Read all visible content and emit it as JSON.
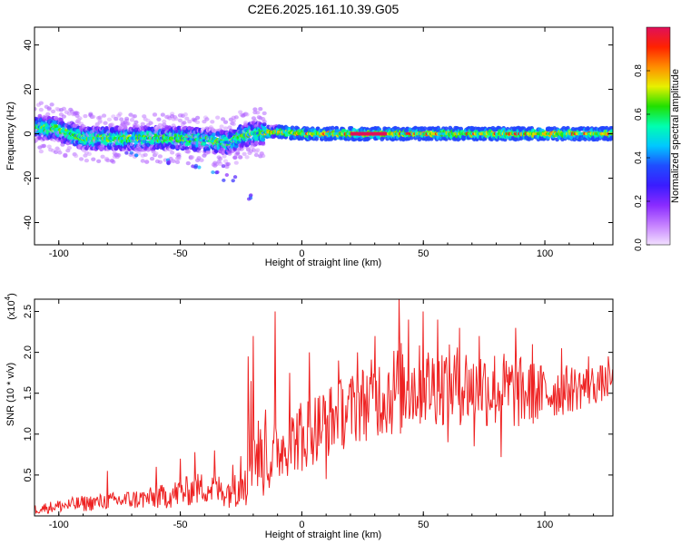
{
  "title": "C2E6.2025.161.10.39.G05",
  "colors": {
    "snr_line": "#ee2222",
    "axis": "#000000",
    "colormap": [
      "#f2e0ff",
      "#c580ff",
      "#8a2bff",
      "#3a1cff",
      "#1f4dff",
      "#00c8ff",
      "#00ffb0",
      "#21e000",
      "#e8f000",
      "#ff8c00",
      "#ff2200",
      "#e0105a"
    ]
  },
  "chart_data": [
    {
      "type": "heatmap",
      "xlabel": "Height of straight line (km)",
      "ylabel": "Frequency (Hz)",
      "xlim": [
        -110,
        128
      ],
      "ylim": [
        -50,
        48
      ],
      "xticks": [
        -100,
        -50,
        0,
        50,
        100
      ],
      "xtick_labels": [
        "-100",
        "-50",
        "0",
        "50",
        "100"
      ],
      "yticks": [
        40,
        20,
        0,
        -20,
        -40
      ],
      "ytick_labels": [
        "40",
        "20",
        "0",
        "-20",
        "-40"
      ],
      "colorbar": {
        "label": "Normalized spectral amplitude",
        "range": [
          0,
          1
        ],
        "ticks": [
          0.0,
          0.2,
          0.4,
          0.6,
          0.8
        ],
        "tick_labels": [
          "0.0",
          "0.2",
          "0.4",
          "0.6",
          "0.8"
        ]
      },
      "ridge_frequency": [
        {
          "x": -108,
          "y": 3
        },
        {
          "x": -100,
          "y": 2
        },
        {
          "x": -90,
          "y": -2
        },
        {
          "x": -80,
          "y": -2
        },
        {
          "x": -70,
          "y": -2
        },
        {
          "x": -60,
          "y": -2
        },
        {
          "x": -50,
          "y": -2
        },
        {
          "x": -40,
          "y": -3
        },
        {
          "x": -30,
          "y": -4
        },
        {
          "x": -25,
          "y": -1
        },
        {
          "x": -20,
          "y": 0
        },
        {
          "x": -10,
          "y": 1
        },
        {
          "x": 0,
          "y": 0
        },
        {
          "x": 20,
          "y": 0
        },
        {
          "x": 60,
          "y": 0
        },
        {
          "x": 100,
          "y": 0
        },
        {
          "x": 128,
          "y": 0
        }
      ],
      "bright_segment": {
        "x": [
          20,
          35
        ],
        "y": 0,
        "amplitude": 1.0
      },
      "secondary_branch": [
        {
          "x": -70,
          "y": -10
        },
        {
          "x": -55,
          "y": -12
        },
        {
          "x": -45,
          "y": -14
        },
        {
          "x": -35,
          "y": -16
        },
        {
          "x": -30,
          "y": -20
        },
        {
          "x": -20,
          "y": -29
        }
      ]
    },
    {
      "type": "line",
      "xlabel": "Height of straight line (km)",
      "ylabel": "SNR (10 * v/v)",
      "y_multiplier": "(x10",
      "y_multiplier_exp": "4",
      "y_multiplier_close": ")",
      "xlim": [
        -110,
        128
      ],
      "ylim": [
        0,
        2.65
      ],
      "xticks": [
        -100,
        -50,
        0,
        50,
        100
      ],
      "xtick_labels": [
        "-100",
        "-50",
        "0",
        "50",
        "100"
      ],
      "yticks": [
        0.5,
        1.0,
        1.5,
        2.0,
        2.5
      ],
      "ytick_labels": [
        "0.5",
        "1.0",
        "1.5",
        "2.0",
        "2.5"
      ],
      "series": [
        {
          "color": "#ee2222",
          "x": [
            -110,
            -100,
            -90,
            -80,
            -70,
            -60,
            -50,
            -40,
            -35,
            -30,
            -25,
            -22,
            -20,
            -18,
            -15,
            -10,
            -5,
            0,
            10,
            20,
            30,
            35,
            40,
            50,
            60,
            70,
            80,
            90,
            100,
            110,
            120,
            128
          ],
          "baseline": [
            0.08,
            0.12,
            0.15,
            0.18,
            0.2,
            0.22,
            0.28,
            0.35,
            0.32,
            0.3,
            0.55,
            0.7,
            0.8,
            0.75,
            0.65,
            0.8,
            0.9,
            1.0,
            1.15,
            1.3,
            1.45,
            1.5,
            1.55,
            1.6,
            1.6,
            1.6,
            1.55,
            1.5,
            1.5,
            1.55,
            1.6,
            1.65
          ],
          "noise_amplitude": [
            0.06,
            0.08,
            0.1,
            0.1,
            0.12,
            0.14,
            0.18,
            0.2,
            0.2,
            0.2,
            0.45,
            0.6,
            0.55,
            0.5,
            0.45,
            0.4,
            0.4,
            0.45,
            0.45,
            0.45,
            0.5,
            0.55,
            0.6,
            0.5,
            0.5,
            0.5,
            0.5,
            0.45,
            0.35,
            0.3,
            0.25,
            0.2
          ],
          "spikes": [
            {
              "x": -80,
              "y": 0.55
            },
            {
              "x": -60,
              "y": 0.6
            },
            {
              "x": -50,
              "y": 0.7
            },
            {
              "x": -44,
              "y": 0.78
            },
            {
              "x": -36,
              "y": 0.8
            },
            {
              "x": -22,
              "y": 1.95
            },
            {
              "x": -21,
              "y": 1.65
            },
            {
              "x": -20,
              "y": 2.2
            },
            {
              "x": -15,
              "y": 1.3
            },
            {
              "x": -11,
              "y": 2.5
            },
            {
              "x": -5,
              "y": 1.75
            },
            {
              "x": 3,
              "y": 2.0
            },
            {
              "x": 15,
              "y": 1.9
            },
            {
              "x": 23,
              "y": 2.0
            },
            {
              "x": 30,
              "y": 2.2
            },
            {
              "x": 40,
              "y": 2.65
            },
            {
              "x": 44,
              "y": 2.4
            },
            {
              "x": 50,
              "y": 2.5
            },
            {
              "x": 56,
              "y": 2.4
            },
            {
              "x": 65,
              "y": 2.3
            },
            {
              "x": 73,
              "y": 2.2
            },
            {
              "x": 82,
              "y": 2.6
            },
            {
              "x": 88,
              "y": 2.3
            },
            {
              "x": 95,
              "y": 2.1
            },
            {
              "x": 107,
              "y": 2.05
            },
            {
              "x": 118,
              "y": 1.95
            },
            {
              "x": 126,
              "y": 1.95
            }
          ],
          "dips": [
            {
              "x": 0,
              "y": 0.55
            },
            {
              "x": 10,
              "y": 0.45
            },
            {
              "x": 60,
              "y": 0.9
            },
            {
              "x": 71,
              "y": 0.85
            },
            {
              "x": 82,
              "y": 0.72
            }
          ]
        }
      ]
    }
  ]
}
